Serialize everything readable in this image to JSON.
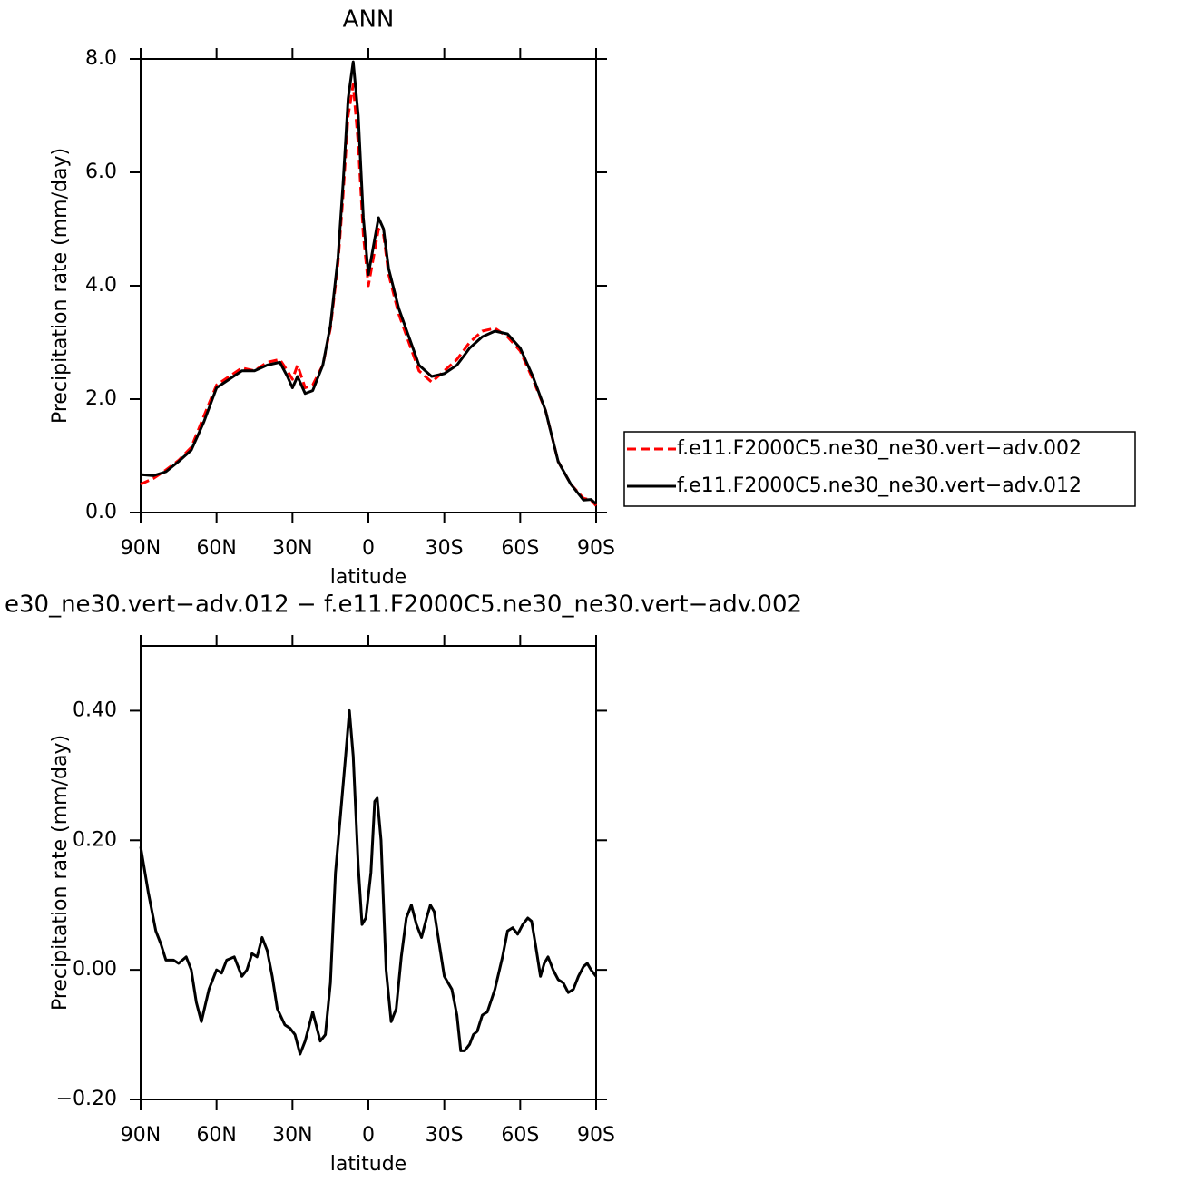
{
  "chart_data": [
    {
      "type": "line",
      "title": "ANN",
      "xlabel": "latitude",
      "ylabel": "Precipitation rate (mm/day)",
      "x": [
        90,
        85,
        80,
        75,
        70,
        65,
        60,
        55,
        50,
        45,
        40,
        35,
        32,
        30,
        28,
        25,
        22,
        18,
        15,
        12,
        10,
        8,
        6,
        4,
        2,
        0,
        -2,
        -4,
        -6,
        -8,
        -12,
        -16,
        -20,
        -25,
        -30,
        -35,
        -40,
        -45,
        -50,
        -55,
        -60,
        -65,
        -70,
        -75,
        -80,
        -85,
        -88,
        -90
      ],
      "series": [
        {
          "name": "f.e11.F2000C5.ne30_ne30.vert−adv.002",
          "color": "#ff0000",
          "dash": "dashed",
          "values": [
            0.5,
            0.6,
            0.75,
            0.92,
            1.15,
            1.7,
            2.25,
            2.4,
            2.55,
            2.5,
            2.65,
            2.7,
            2.5,
            2.35,
            2.6,
            2.2,
            2.25,
            2.6,
            3.25,
            4.4,
            5.6,
            7.0,
            7.55,
            6.5,
            4.9,
            4.0,
            4.5,
            5.0,
            4.9,
            4.2,
            3.5,
            3.0,
            2.5,
            2.3,
            2.5,
            2.7,
            3.0,
            3.2,
            3.25,
            3.1,
            2.85,
            2.35,
            1.8,
            0.9,
            0.5,
            0.25,
            0.22,
            0.12
          ]
        },
        {
          "name": "f.e11.F2000C5.ne30_ne30.vert−adv.012",
          "color": "#000000",
          "dash": "solid",
          "values": [
            0.67,
            0.65,
            0.72,
            0.9,
            1.1,
            1.6,
            2.2,
            2.35,
            2.5,
            2.5,
            2.6,
            2.65,
            2.4,
            2.2,
            2.4,
            2.1,
            2.15,
            2.6,
            3.3,
            4.5,
            5.8,
            7.3,
            7.95,
            7.0,
            5.2,
            4.2,
            4.7,
            5.2,
            5.0,
            4.3,
            3.6,
            3.1,
            2.6,
            2.4,
            2.45,
            2.6,
            2.9,
            3.1,
            3.2,
            3.15,
            2.9,
            2.4,
            1.8,
            0.9,
            0.5,
            0.22,
            0.23,
            0.15
          ]
        }
      ],
      "xlim": [
        90,
        -90
      ],
      "xticks": [
        {
          "value": 90,
          "label": "90N"
        },
        {
          "value": 60,
          "label": "60N"
        },
        {
          "value": 30,
          "label": "30N"
        },
        0,
        {
          "value": -30,
          "label": "30S"
        },
        {
          "value": -60,
          "label": "60S"
        },
        {
          "value": -90,
          "label": "90S"
        }
      ],
      "ylim": [
        0,
        8
      ],
      "yticks": [
        {
          "value": 0,
          "label": "0.0"
        },
        {
          "value": 2,
          "label": "2.0"
        },
        {
          "value": 4,
          "label": "4.0"
        },
        {
          "value": 6,
          "label": "6.0"
        },
        {
          "value": 8,
          "label": "8.0"
        }
      ],
      "legend": "right"
    },
    {
      "type": "line",
      "title": "e30_ne30.vert−adv.012 − f.e11.F2000C5.ne30_ne30.vert−adv.002",
      "xlabel": "latitude",
      "ylabel": "Precipitation rate (mm/day)",
      "x": [
        90,
        87,
        84,
        82,
        80,
        77,
        75,
        72,
        70,
        68,
        66,
        63,
        60,
        58,
        56,
        53,
        50,
        48,
        46,
        44,
        42,
        40,
        38,
        36,
        33,
        31,
        29,
        27,
        25,
        22,
        19,
        17,
        15,
        13,
        11,
        9,
        7.5,
        6,
        4,
        2.5,
        1,
        -1,
        -2.5,
        -3.5,
        -5,
        -7,
        -9,
        -11,
        -13,
        -15,
        -17,
        -19,
        -21,
        -23,
        -24.5,
        -26,
        -28,
        -30,
        -33,
        -35,
        -36.5,
        -38,
        -40,
        -41.5,
        -43,
        -45,
        -47,
        -50,
        -53,
        -55,
        -57,
        -59,
        -61,
        -63,
        -64.5,
        -66,
        -68,
        -69.5,
        -71,
        -73,
        -75,
        -77,
        -79,
        -81,
        -83,
        -85,
        -86.5,
        -88,
        -90
      ],
      "series": [
        {
          "color": "#000000",
          "dash": "solid",
          "values": [
            0.19,
            0.12,
            0.06,
            0.04,
            0.015,
            0.015,
            0.01,
            0.02,
            0.0,
            -0.05,
            -0.08,
            -0.03,
            0.0,
            -0.005,
            0.015,
            0.02,
            -0.01,
            0.0,
            0.025,
            0.02,
            0.05,
            0.03,
            -0.01,
            -0.06,
            -0.085,
            -0.09,
            -0.1,
            -0.13,
            -0.11,
            -0.065,
            -0.11,
            -0.1,
            -0.02,
            0.15,
            0.24,
            0.33,
            0.4,
            0.33,
            0.16,
            0.07,
            0.08,
            0.15,
            0.26,
            0.265,
            0.2,
            0.0,
            -0.08,
            -0.06,
            0.02,
            0.08,
            0.1,
            0.07,
            0.05,
            0.08,
            0.1,
            0.09,
            0.04,
            -0.01,
            -0.03,
            -0.07,
            -0.125,
            -0.125,
            -0.115,
            -0.1,
            -0.095,
            -0.07,
            -0.065,
            -0.03,
            0.02,
            0.06,
            0.065,
            0.055,
            0.07,
            0.08,
            0.075,
            0.04,
            -0.01,
            0.01,
            0.02,
            0.0,
            -0.015,
            -0.02,
            -0.035,
            -0.03,
            -0.01,
            0.005,
            0.01,
            0.0,
            -0.01
          ]
        }
      ],
      "xlim": [
        90,
        -90
      ],
      "xticks": [
        {
          "value": 90,
          "label": "90N"
        },
        {
          "value": 60,
          "label": "60N"
        },
        {
          "value": 30,
          "label": "30N"
        },
        0,
        {
          "value": -30,
          "label": "30S"
        },
        {
          "value": -60,
          "label": "60S"
        },
        {
          "value": -90,
          "label": "90S"
        }
      ],
      "ylim": [
        -0.2,
        0.5
      ],
      "yticks": [
        {
          "value": -0.2,
          "label": "−0.20"
        },
        {
          "value": 0,
          "label": "0.00"
        },
        {
          "value": 0.2,
          "label": "0.20"
        },
        {
          "value": 0.4,
          "label": "0.40"
        }
      ]
    }
  ]
}
